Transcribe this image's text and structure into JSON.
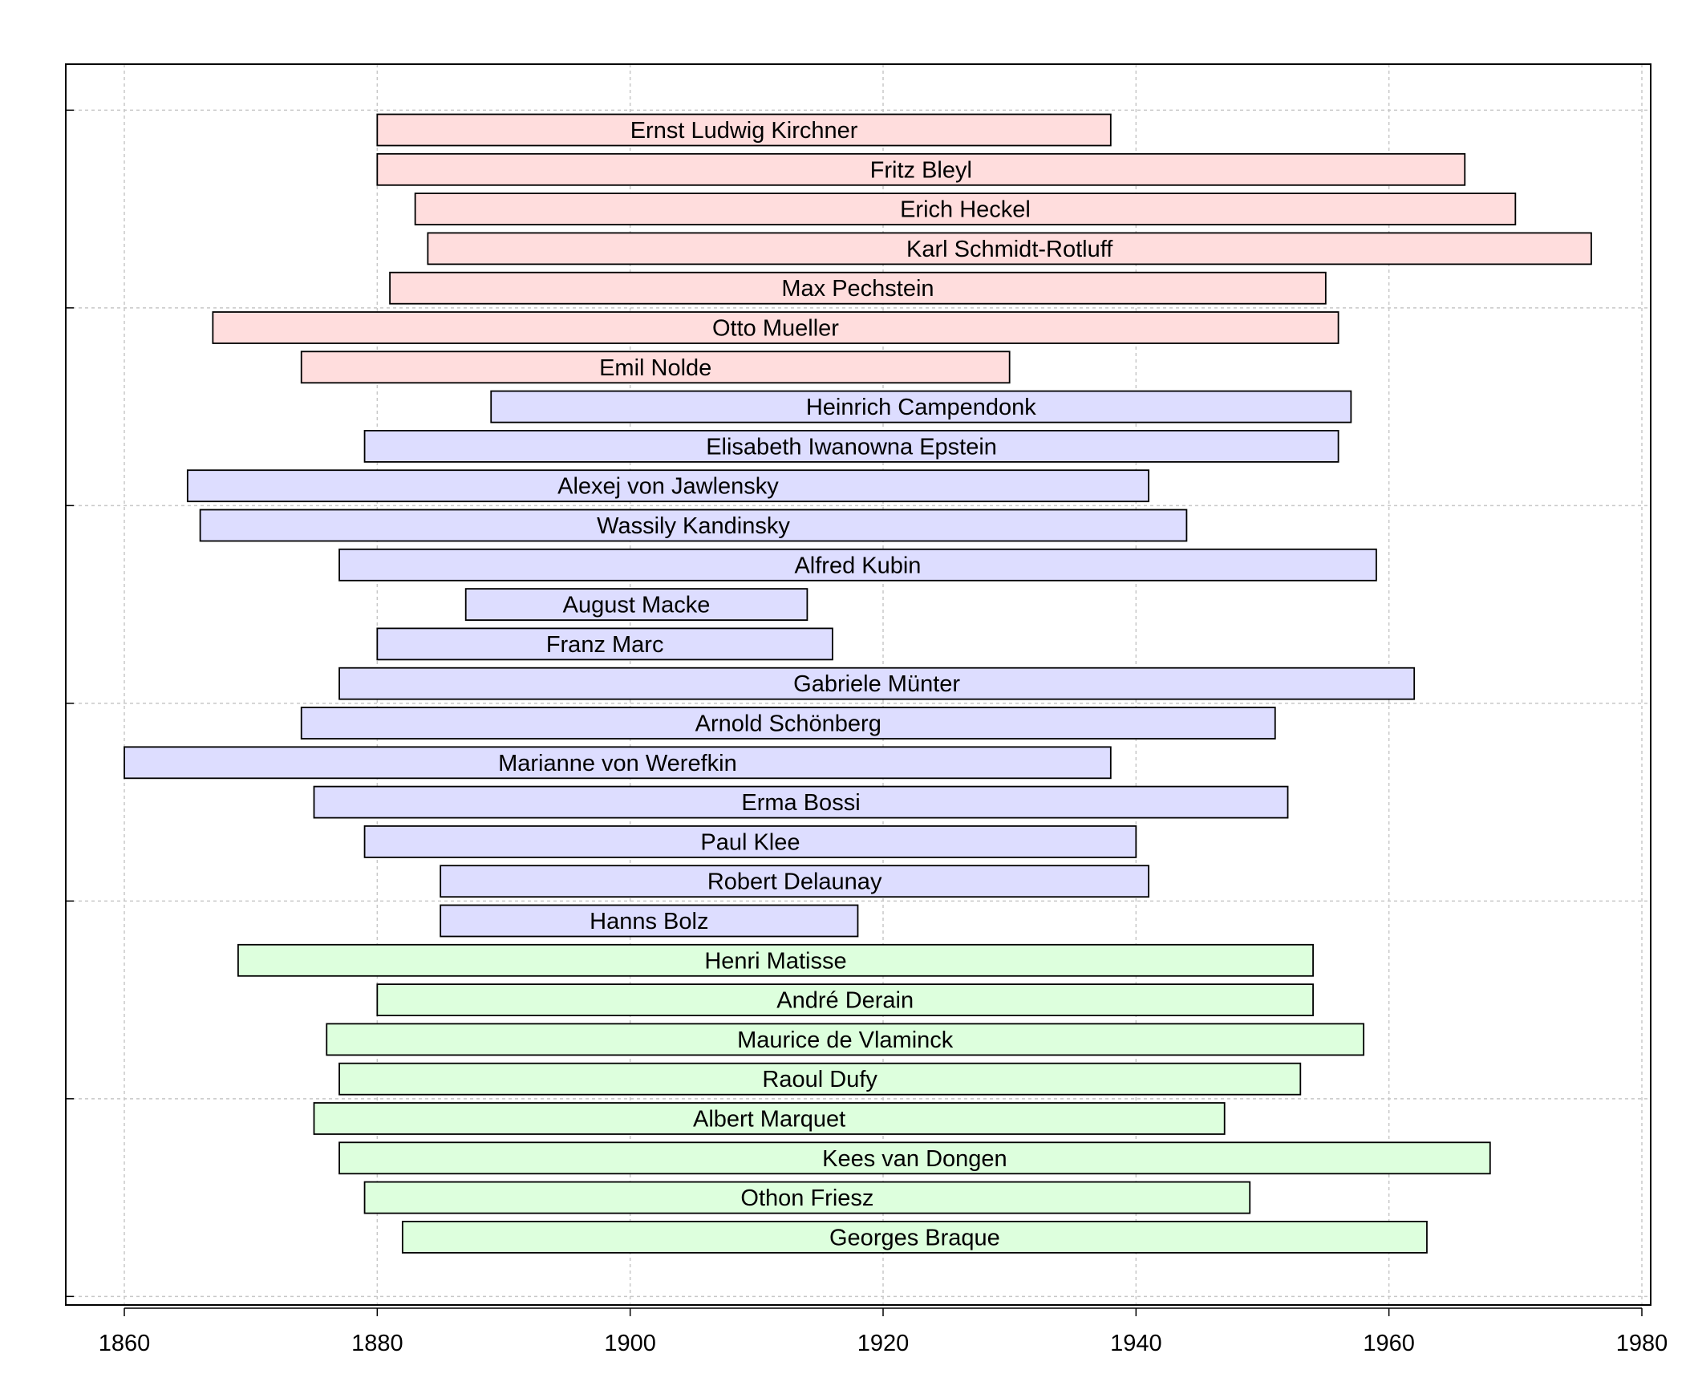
{
  "chart_data": {
    "type": "bar",
    "orientation": "horizontal-range",
    "xlim": [
      1860,
      1980
    ],
    "x_ticks": [
      1860,
      1880,
      1900,
      1920,
      1940,
      1960,
      1980
    ],
    "grid": true,
    "colors": {
      "group1": "#ffdddd",
      "group2": "#ddddff",
      "group3": "#ddffdd",
      "border": "#000000",
      "grid": "#c8c8c8"
    },
    "series": [
      {
        "name": "Ernst Ludwig Kirchner",
        "start": 1880,
        "end": 1938,
        "group": "group1"
      },
      {
        "name": "Fritz Bleyl",
        "start": 1880,
        "end": 1966,
        "group": "group1"
      },
      {
        "name": "Erich Heckel",
        "start": 1883,
        "end": 1970,
        "group": "group1"
      },
      {
        "name": "Karl Schmidt-Rotluff",
        "start": 1884,
        "end": 1976,
        "group": "group1"
      },
      {
        "name": "Max Pechstein",
        "start": 1881,
        "end": 1955,
        "group": "group1"
      },
      {
        "name": "Otto Mueller",
        "start": 1867,
        "end": 1956,
        "group": "group1"
      },
      {
        "name": "Emil Nolde",
        "start": 1874,
        "end": 1930,
        "group": "group1"
      },
      {
        "name": "Heinrich Campendonk",
        "start": 1889,
        "end": 1957,
        "group": "group2"
      },
      {
        "name": "Elisabeth Iwanowna Epstein",
        "start": 1879,
        "end": 1956,
        "group": "group2"
      },
      {
        "name": "Alexej von Jawlensky",
        "start": 1865,
        "end": 1941,
        "group": "group2"
      },
      {
        "name": "Wassily Kandinsky",
        "start": 1866,
        "end": 1944,
        "group": "group2"
      },
      {
        "name": "Alfred Kubin",
        "start": 1877,
        "end": 1959,
        "group": "group2"
      },
      {
        "name": "August Macke",
        "start": 1887,
        "end": 1914,
        "group": "group2"
      },
      {
        "name": "Franz Marc",
        "start": 1880,
        "end": 1916,
        "group": "group2"
      },
      {
        "name": "Gabriele Münter",
        "start": 1877,
        "end": 1962,
        "group": "group2"
      },
      {
        "name": "Arnold Schönberg",
        "start": 1874,
        "end": 1951,
        "group": "group2"
      },
      {
        "name": "Marianne von Werefkin",
        "start": 1860,
        "end": 1938,
        "group": "group2"
      },
      {
        "name": "Erma Bossi",
        "start": 1875,
        "end": 1952,
        "group": "group2"
      },
      {
        "name": "Paul Klee",
        "start": 1879,
        "end": 1940,
        "group": "group2"
      },
      {
        "name": "Robert Delaunay",
        "start": 1885,
        "end": 1941,
        "group": "group2"
      },
      {
        "name": "Hanns Bolz",
        "start": 1885,
        "end": 1918,
        "group": "group2"
      },
      {
        "name": "Henri Matisse",
        "start": 1869,
        "end": 1954,
        "group": "group3"
      },
      {
        "name": "André Derain",
        "start": 1880,
        "end": 1954,
        "group": "group3"
      },
      {
        "name": "Maurice de Vlaminck",
        "start": 1876,
        "end": 1958,
        "group": "group3"
      },
      {
        "name": "Raoul Dufy",
        "start": 1877,
        "end": 1953,
        "group": "group3"
      },
      {
        "name": "Albert Marquet",
        "start": 1875,
        "end": 1947,
        "group": "group3"
      },
      {
        "name": "Kees van Dongen",
        "start": 1877,
        "end": 1968,
        "group": "group3"
      },
      {
        "name": "Othon Friesz",
        "start": 1879,
        "end": 1949,
        "group": "group3"
      },
      {
        "name": "Georges Braque",
        "start": 1882,
        "end": 1963,
        "group": "group3"
      }
    ]
  }
}
